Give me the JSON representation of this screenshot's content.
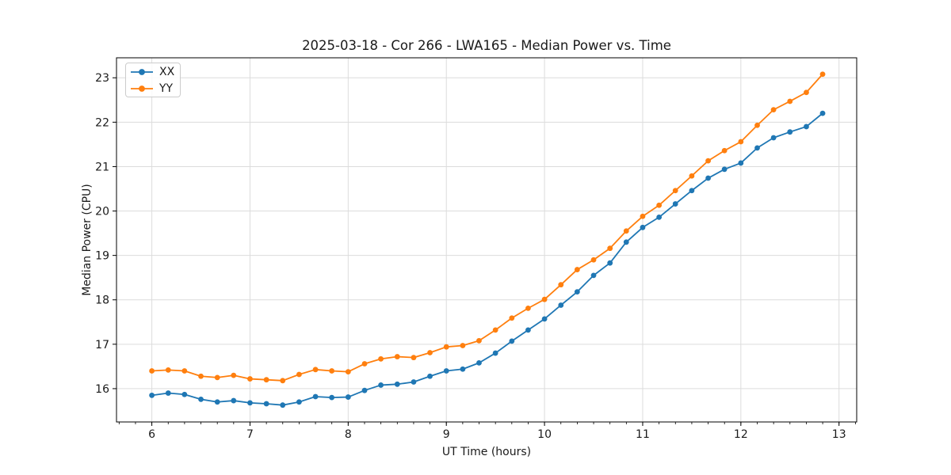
{
  "figure": {
    "background": "#ffffff"
  },
  "chart_data": {
    "type": "line",
    "title": "2025-03-18 - Cor 266 - LWA165 - Median Power vs. Time",
    "xlabel": "UT Time (hours)",
    "ylabel": "Median Power (CPU)",
    "xlim": [
      5.64,
      13.18
    ],
    "ylim": [
      15.25,
      23.45
    ],
    "xticks": [
      6,
      7,
      8,
      9,
      10,
      11,
      12,
      13
    ],
    "yticks": [
      16,
      17,
      18,
      19,
      20,
      21,
      22,
      23
    ],
    "minor_tick_step_x": 0.16667,
    "grid": true,
    "legend_position": "upper left",
    "colors": {
      "grid": "#dcdcdc",
      "spine": "#000000",
      "text": "#1a1a1a"
    },
    "x": [
      6.0,
      6.167,
      6.333,
      6.5,
      6.667,
      6.833,
      7.0,
      7.167,
      7.333,
      7.5,
      7.667,
      7.833,
      8.0,
      8.167,
      8.333,
      8.5,
      8.667,
      8.833,
      9.0,
      9.167,
      9.333,
      9.5,
      9.667,
      9.833,
      10.0,
      10.167,
      10.333,
      10.5,
      10.667,
      10.833,
      11.0,
      11.167,
      11.333,
      11.5,
      11.667,
      11.833,
      12.0,
      12.167,
      12.333,
      12.5,
      12.667,
      12.833
    ],
    "series": [
      {
        "name": "XX",
        "color": "#1f77b4",
        "marker": "circle",
        "values": [
          15.85,
          15.9,
          15.87,
          15.76,
          15.7,
          15.73,
          15.68,
          15.66,
          15.63,
          15.7,
          15.82,
          15.8,
          15.81,
          15.96,
          16.08,
          16.1,
          16.15,
          16.28,
          16.4,
          16.44,
          16.58,
          16.8,
          17.07,
          17.32,
          17.57,
          17.88,
          18.18,
          18.55,
          18.83,
          19.3,
          19.63,
          19.86,
          20.16,
          20.46,
          20.74,
          20.94,
          21.08,
          21.42,
          21.65,
          21.78,
          21.9,
          22.2
        ]
      },
      {
        "name": "YY",
        "color": "#ff7f0e",
        "marker": "circle",
        "values": [
          16.4,
          16.42,
          16.4,
          16.28,
          16.25,
          16.3,
          16.22,
          16.2,
          16.18,
          16.32,
          16.43,
          16.4,
          16.38,
          16.56,
          16.67,
          16.72,
          16.7,
          16.81,
          16.94,
          16.97,
          17.08,
          17.32,
          17.59,
          17.81,
          18.01,
          18.34,
          18.68,
          18.9,
          19.16,
          19.55,
          19.88,
          20.13,
          20.46,
          20.79,
          21.13,
          21.36,
          21.56,
          21.93,
          22.28,
          22.47,
          22.67,
          23.08
        ]
      }
    ]
  }
}
